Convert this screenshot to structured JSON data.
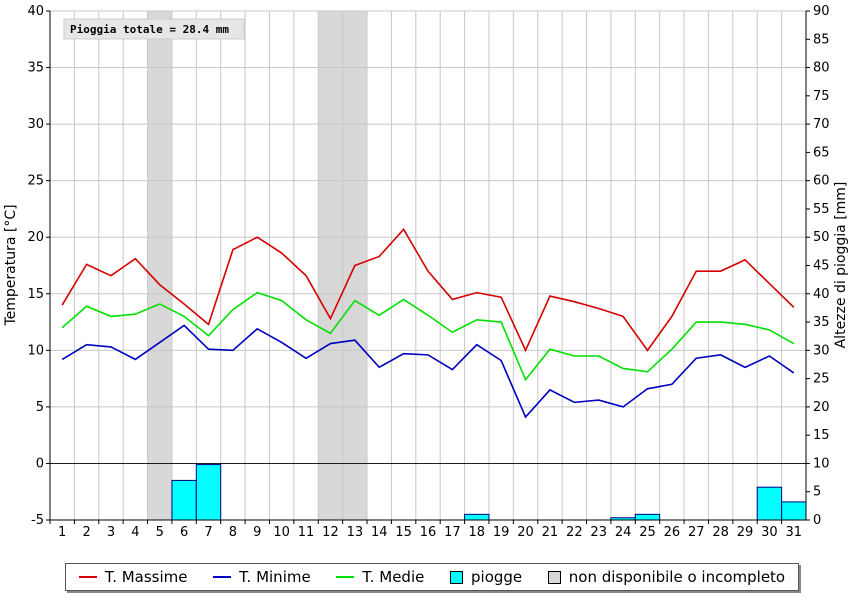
{
  "chart_data": {
    "type": "line",
    "xlabel": "",
    "ylabel": "Temperatura [°C]",
    "y2label": "Altezze di pioggia [mm]",
    "ylim": [
      -5,
      40
    ],
    "y2lim": [
      0,
      90
    ],
    "categories": [
      "1",
      "2",
      "3",
      "4",
      "5",
      "6",
      "7",
      "8",
      "9",
      "10",
      "11",
      "12",
      "13",
      "14",
      "15",
      "16",
      "17",
      "18",
      "19",
      "20",
      "21",
      "22",
      "23",
      "24",
      "25",
      "26",
      "27",
      "28",
      "29",
      "30",
      "31"
    ],
    "annotation": "Pioggia totale = 28.4 mm",
    "grid": true,
    "legend_position": "bottom",
    "unavailable_days": [
      5,
      12,
      13
    ],
    "colors": {
      "max": "#d40000",
      "min": "#0000c0",
      "mean": "#00e000",
      "rain": "#00ffff",
      "unavailable": "#d8d8d8"
    },
    "series": [
      {
        "name": "T. Massime",
        "axis": "left",
        "values": [
          14.0,
          17.6,
          16.6,
          18.1,
          15.8,
          14.1,
          12.3,
          18.9,
          20.0,
          18.6,
          16.6,
          12.8,
          17.5,
          18.3,
          20.7,
          17.0,
          14.5,
          15.1,
          14.7,
          10.0,
          14.8,
          14.3,
          13.7,
          13.0,
          10.0,
          13.0,
          17.0,
          17.0,
          18.0,
          15.9,
          13.8
        ]
      },
      {
        "name": "T. Minime",
        "axis": "left",
        "values": [
          9.2,
          10.5,
          10.3,
          9.2,
          10.7,
          12.2,
          10.1,
          10.0,
          11.9,
          10.7,
          9.3,
          10.6,
          10.9,
          8.5,
          9.7,
          9.6,
          8.3,
          10.5,
          9.1,
          4.1,
          6.5,
          5.4,
          5.6,
          5.0,
          6.6,
          7.0,
          9.3,
          9.6,
          8.5,
          9.5,
          8.0
        ]
      },
      {
        "name": "T. Medie",
        "axis": "left",
        "values": [
          12.0,
          13.9,
          13.0,
          13.2,
          14.1,
          13.0,
          11.3,
          13.6,
          15.1,
          14.4,
          12.7,
          11.5,
          14.4,
          13.1,
          14.5,
          13.1,
          11.6,
          12.7,
          12.5,
          7.4,
          10.1,
          9.5,
          9.5,
          8.4,
          8.1,
          10.1,
          12.5,
          12.5,
          12.3,
          11.8,
          10.6
        ]
      },
      {
        "name": "piogge",
        "axis": "right",
        "type": "bar",
        "values": [
          0,
          0,
          0,
          0,
          0,
          7.0,
          9.8,
          0,
          0,
          0,
          0,
          0,
          0,
          0,
          0,
          0,
          0,
          1.0,
          0,
          0,
          0,
          0,
          0,
          0.4,
          1.0,
          0,
          0,
          0,
          0,
          5.8,
          3.2
        ]
      }
    ],
    "legend": [
      "T. Massime",
      "T. Minime",
      "T. Medie",
      "piogge",
      "non disponibile o incompleto"
    ]
  }
}
